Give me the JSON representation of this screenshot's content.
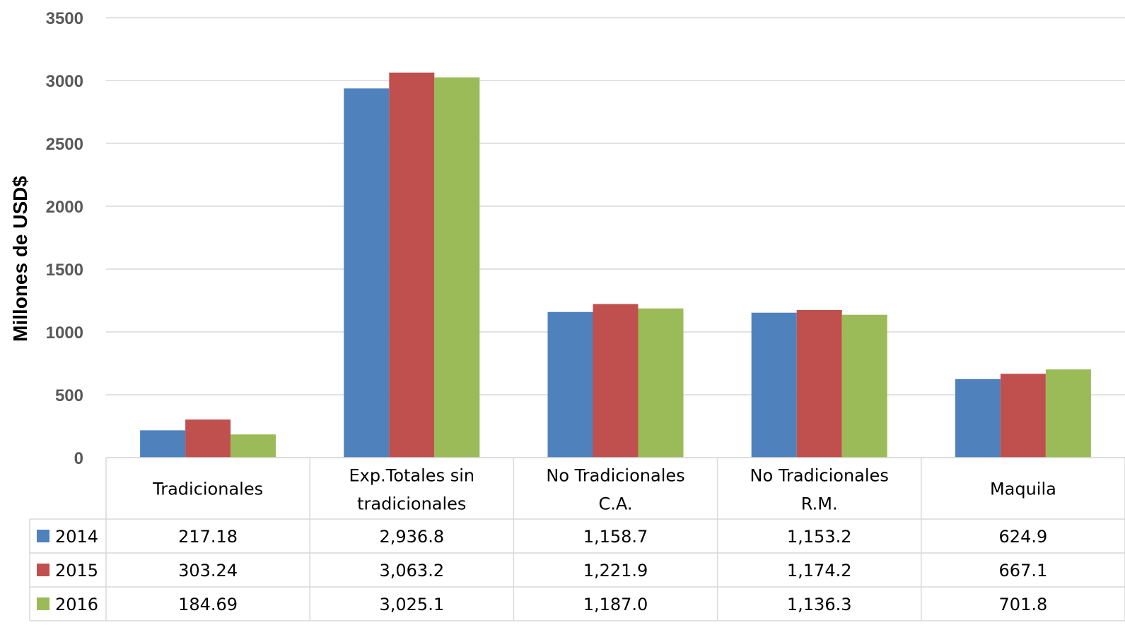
{
  "chart_data": {
    "type": "bar",
    "ylabel": "Millones de USD$",
    "ylim": [
      0,
      3500
    ],
    "yticks": [
      0,
      500,
      1000,
      1500,
      2000,
      2500,
      3000,
      3500
    ],
    "grid": true,
    "legend": "data-table",
    "categories": [
      [
        "Tradicionales"
      ],
      [
        "Exp.Totales sin",
        "tradicionales"
      ],
      [
        "No Tradicionales",
        "C.A."
      ],
      [
        "No Tradicionales",
        "R.M."
      ],
      [
        "Maquila"
      ]
    ],
    "series": [
      {
        "name": "2014",
        "color": "#4f81bd",
        "values": [
          217.18,
          2936.8,
          1158.7,
          1153.2,
          624.9
        ],
        "labels": [
          "217.18",
          "2,936.8",
          "1,158.7",
          "1,153.2",
          "624.9"
        ]
      },
      {
        "name": "2015",
        "color": "#c0504d",
        "values": [
          303.24,
          3063.2,
          1221.9,
          1174.2,
          667.1
        ],
        "labels": [
          "303.24",
          "3,063.2",
          "1,221.9",
          "1,174.2",
          "667.1"
        ]
      },
      {
        "name": "2016",
        "color": "#9bbb59",
        "values": [
          184.69,
          3025.1,
          1187.0,
          1136.3,
          701.8
        ],
        "labels": [
          "184.69",
          "3,025.1",
          "1,187.0",
          "1,136.3",
          "701.8"
        ]
      }
    ]
  }
}
